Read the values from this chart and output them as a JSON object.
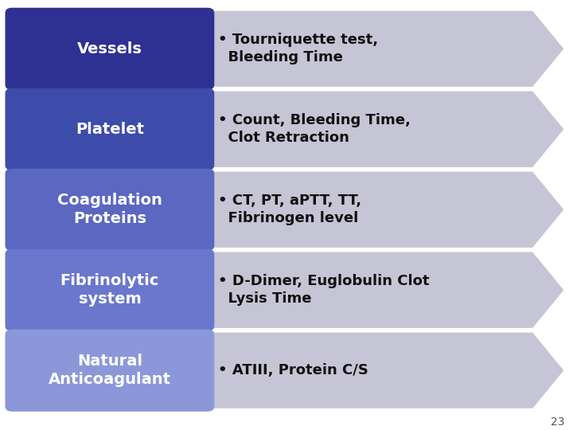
{
  "rows": [
    {
      "label": "Vessels",
      "text": "• Tourniquette test,\n  Bleeding Time",
      "box_color": "#2E3192",
      "arrow_color": "#C5C5D5"
    },
    {
      "label": "Platelet",
      "text": "• Count, Bleeding Time,\n  Clot Retraction",
      "box_color": "#3D4BAA",
      "arrow_color": "#C5C5D5"
    },
    {
      "label": "Coagulation\nProteins",
      "text": "• CT, PT, aPTT, TT,\n  Fibrinogen level",
      "box_color": "#5B67C0",
      "arrow_color": "#C5C5D5"
    },
    {
      "label": "Fibrinolytic\nsystem",
      "text": "• D-Dimer, Euglobulin Clot\n  Lysis Time",
      "box_color": "#6B77CC",
      "arrow_color": "#C5C5D5"
    },
    {
      "label": "Natural\nAnticoagulant",
      "text": "• ATIII, Protein C/S",
      "box_color": "#8B97D8",
      "arrow_color": "#C5C5D5"
    }
  ],
  "bg_color": "#FFFFFF",
  "label_text_color": "#FFFFFF",
  "content_text_color": "#111111",
  "page_number": "23",
  "label_fontsize": 14,
  "content_fontsize": 13,
  "fig_width": 7.2,
  "fig_height": 5.4,
  "dpi": 100
}
